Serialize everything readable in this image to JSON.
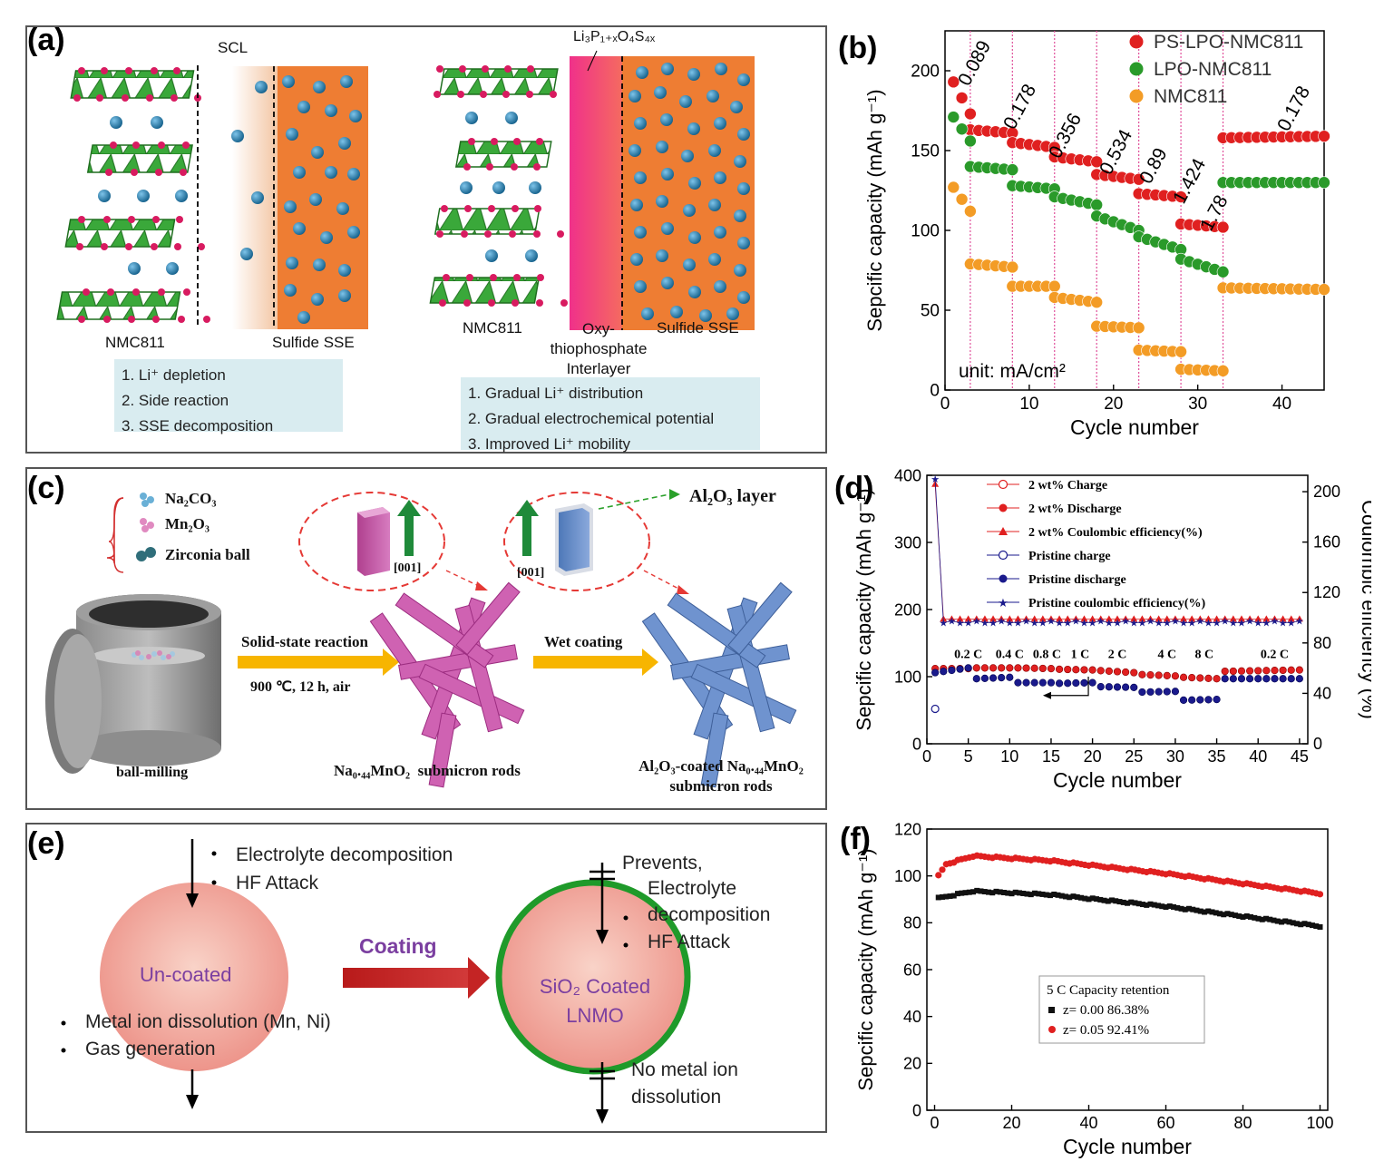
{
  "colors": {
    "nmc_green": "#3aa83a",
    "ion_blue": "#1f78a8",
    "sse_orange": "#ee7d33",
    "red": "#e02020",
    "green": "#2a9a2a",
    "orange": "#f39c26",
    "navy": "#1a1a8c",
    "interlayer_pink": "#f0318a",
    "coating_green": "#2aa02a"
  },
  "panel_a": {
    "label": "(a)",
    "scl": "SCL",
    "left_nmc": "NMC811",
    "left_sse": "Sulfide SSE",
    "left_notes": [
      "1. Li⁺ depletion",
      "2. Side reaction",
      "3. SSE decomposition"
    ],
    "interlayer_formula": "Li₃P₁₊ₓO₄S₄ₓ",
    "right_nmc": "NMC811",
    "right_interlayer": [
      "Oxy-",
      "thiophosphate",
      "Interlayer"
    ],
    "right_sse": "Sulfide SSE",
    "right_notes": [
      "1. Gradual Li⁺ distribution",
      "2. Gradual electrochemical potential",
      "3. Improved Li⁺ mobility"
    ]
  },
  "panel_b": {
    "label": "(b)",
    "unit_note": "unit: mA/cm²",
    "rate_labels": [
      "0.089",
      "0.178",
      "0.356",
      "0.534",
      "0.89",
      "1.424",
      "1.78",
      "0.178"
    ]
  },
  "panel_c": {
    "label": "(c)",
    "legend": [
      "Na₂CO₃",
      "Mn₂O₃",
      "Zirconia ball"
    ],
    "direction": "[001]",
    "al2o3_layer": "Al₂O₃ layer",
    "step1": "Solid-state reaction",
    "step1_cond": "900 ℃, 12 h, air",
    "step2": "Wet coating",
    "ball_milling": "ball-milling",
    "rods": "Na₀.₄₄MnO₂  submicron rods",
    "coated_rods": [
      "Al₂O₃-coated Na₀.₄₄MnO₂",
      "submicron rods"
    ]
  },
  "panel_d": {
    "label": "(d)",
    "legend": [
      "2 wt%  Charge",
      "2 wt%  Discharge",
      "2 wt%  Coulombic efficiency(%)",
      "Pristine charge",
      "Pristine discharge",
      "Pristine coulombic efficiency(%)"
    ],
    "rate_labels": [
      "0.2 C",
      "0.4 C",
      "0.8 C",
      "1 C",
      "2 C",
      "4 C",
      "8 C",
      "0.2 C"
    ],
    "y2label": "Coulombic efficiency (%)"
  },
  "panel_e": {
    "label": "(e)",
    "top_bullets": [
      "Electrolyte decomposition",
      "HF Attack"
    ],
    "uncoated": "Un-coated",
    "bottom_bullets": [
      "Metal ion dissolution (Mn, Ni)",
      "Gas generation"
    ],
    "coating": "Coating",
    "coated": [
      "SiO₂ Coated",
      "LNMO"
    ],
    "prevents": "Prevents,",
    "prevents_bullets": [
      "Electrolyte",
      "decomposition",
      "HF Attack"
    ],
    "no_dissolution": [
      "No metal ion",
      "dissolution"
    ]
  },
  "panel_f": {
    "label": "(f)",
    "legend_header": "5 C    Capacity retention",
    "legend": [
      "z= 0.00    86.38%",
      "z= 0.05    92.41%"
    ]
  },
  "chart_data": [
    {
      "id": "b",
      "type": "scatter",
      "xlabel": "Cycle number",
      "ylabel": "Sepcific capacity (mAh g⁻¹)",
      "xlim": [
        0,
        45
      ],
      "ylim": [
        0,
        225
      ],
      "xticks": [
        0,
        10,
        20,
        30,
        40
      ],
      "yticks": [
        0,
        50,
        100,
        150,
        200
      ],
      "rate_boundaries": [
        3,
        8,
        13,
        18,
        23,
        28,
        33
      ],
      "series": [
        {
          "name": "PS-LPO-NMC811",
          "color": "#e02020",
          "segments": [
            [
              1,
              3,
              193,
              173
            ],
            [
              3,
              8,
              163,
              161
            ],
            [
              8,
              13,
              155,
              152
            ],
            [
              13,
              18,
              146,
              143
            ],
            [
              18,
              23,
              135,
              132
            ],
            [
              23,
              28,
              123,
              121
            ],
            [
              28,
              33,
              104,
              102
            ],
            [
              33,
              45,
              158,
              159
            ]
          ]
        },
        {
          "name": "LPO-NMC811",
          "color": "#2a9a2a",
          "segments": [
            [
              1,
              3,
              171,
              156
            ],
            [
              3,
              8,
              140,
              138
            ],
            [
              8,
              13,
              128,
              126
            ],
            [
              13,
              18,
              121,
              116
            ],
            [
              18,
              23,
              109,
              100
            ],
            [
              23,
              28,
              96,
              88
            ],
            [
              28,
              33,
              82,
              74
            ],
            [
              33,
              45,
              130,
              130
            ]
          ]
        },
        {
          "name": "NMC811",
          "color": "#f39c26",
          "segments": [
            [
              1,
              3,
              127,
              112
            ],
            [
              3,
              8,
              79,
              77
            ],
            [
              8,
              13,
              65,
              65
            ],
            [
              13,
              18,
              58,
              55
            ],
            [
              18,
              23,
              40,
              39
            ],
            [
              23,
              28,
              25,
              24
            ],
            [
              28,
              33,
              13,
              12
            ],
            [
              33,
              45,
              64,
              63
            ]
          ]
        }
      ]
    },
    {
      "id": "d",
      "type": "scatter",
      "xlabel": "Cycle number",
      "ylabel": "Sepcific capacity (mAh g⁻¹)",
      "y2label": "Coulombic efficiency (%)",
      "xlim": [
        0,
        46
      ],
      "ylim": [
        0,
        400
      ],
      "y2lim": [
        0,
        213
      ],
      "xticks": [
        0,
        5,
        10,
        15,
        20,
        25,
        30,
        35,
        40,
        45
      ],
      "yticks": [
        0,
        100,
        200,
        300,
        400
      ],
      "y2ticks": [
        0,
        40,
        80,
        120,
        160,
        200
      ],
      "series": [
        {
          "name": "2 wt%  Discharge",
          "color": "#e02020",
          "segments": [
            [
              1,
              5,
              112,
              112
            ],
            [
              6,
              10,
              113,
              113
            ],
            [
              11,
              15,
              113,
              112
            ],
            [
              16,
              20,
              111,
              110
            ],
            [
              21,
              25,
              109,
              106
            ],
            [
              26,
              30,
              103,
              101
            ],
            [
              31,
              35,
              99,
              97
            ],
            [
              36,
              45,
              108,
              110
            ]
          ]
        },
        {
          "name": "Pristine discharge",
          "color": "#1a1a8c",
          "segments": [
            [
              1,
              5,
              106,
              113
            ],
            [
              6,
              10,
              97,
              99
            ],
            [
              11,
              15,
              91,
              91
            ],
            [
              16,
              20,
              90,
              91
            ],
            [
              21,
              25,
              85,
              84
            ],
            [
              26,
              30,
              77,
              78
            ],
            [
              31,
              35,
              65,
              66
            ],
            [
              36,
              45,
              97,
              97
            ]
          ]
        },
        {
          "name": "2 wt%  Coulombic efficiency(%)",
          "color": "#e02020",
          "axis": "y2",
          "points": [
            [
              1,
              206
            ]
          ],
          "steady": [
            2,
            45,
            99
          ]
        },
        {
          "name": "Pristine coulombic efficiency(%)",
          "color": "#1a1a8c",
          "axis": "y2",
          "points": [
            [
              1,
              210
            ]
          ],
          "steady": [
            2,
            45,
            96
          ]
        }
      ]
    },
    {
      "id": "f",
      "type": "scatter",
      "xlabel": "Cycle number",
      "ylabel": "Sepcific capacity (mAh g⁻¹)",
      "xlim": [
        -2,
        102
      ],
      "ylim": [
        0,
        120
      ],
      "xticks": [
        0,
        20,
        40,
        60,
        80,
        100
      ],
      "yticks": [
        0,
        20,
        40,
        60,
        80,
        100,
        120
      ],
      "series": [
        {
          "name": "z= 0.00",
          "color": "#111111",
          "curve": [
            [
              1,
              90.5
            ],
            [
              10,
              93.5
            ],
            [
              30,
              92
            ],
            [
              60,
              87
            ],
            [
              100,
              78.5
            ]
          ]
        },
        {
          "name": "z= 0.05",
          "color": "#e02020",
          "curve": [
            [
              1,
              100
            ],
            [
              3,
              105
            ],
            [
              10,
              108.5
            ],
            [
              30,
              106.5
            ],
            [
              60,
              101
            ],
            [
              100,
              92.5
            ]
          ]
        }
      ]
    }
  ]
}
